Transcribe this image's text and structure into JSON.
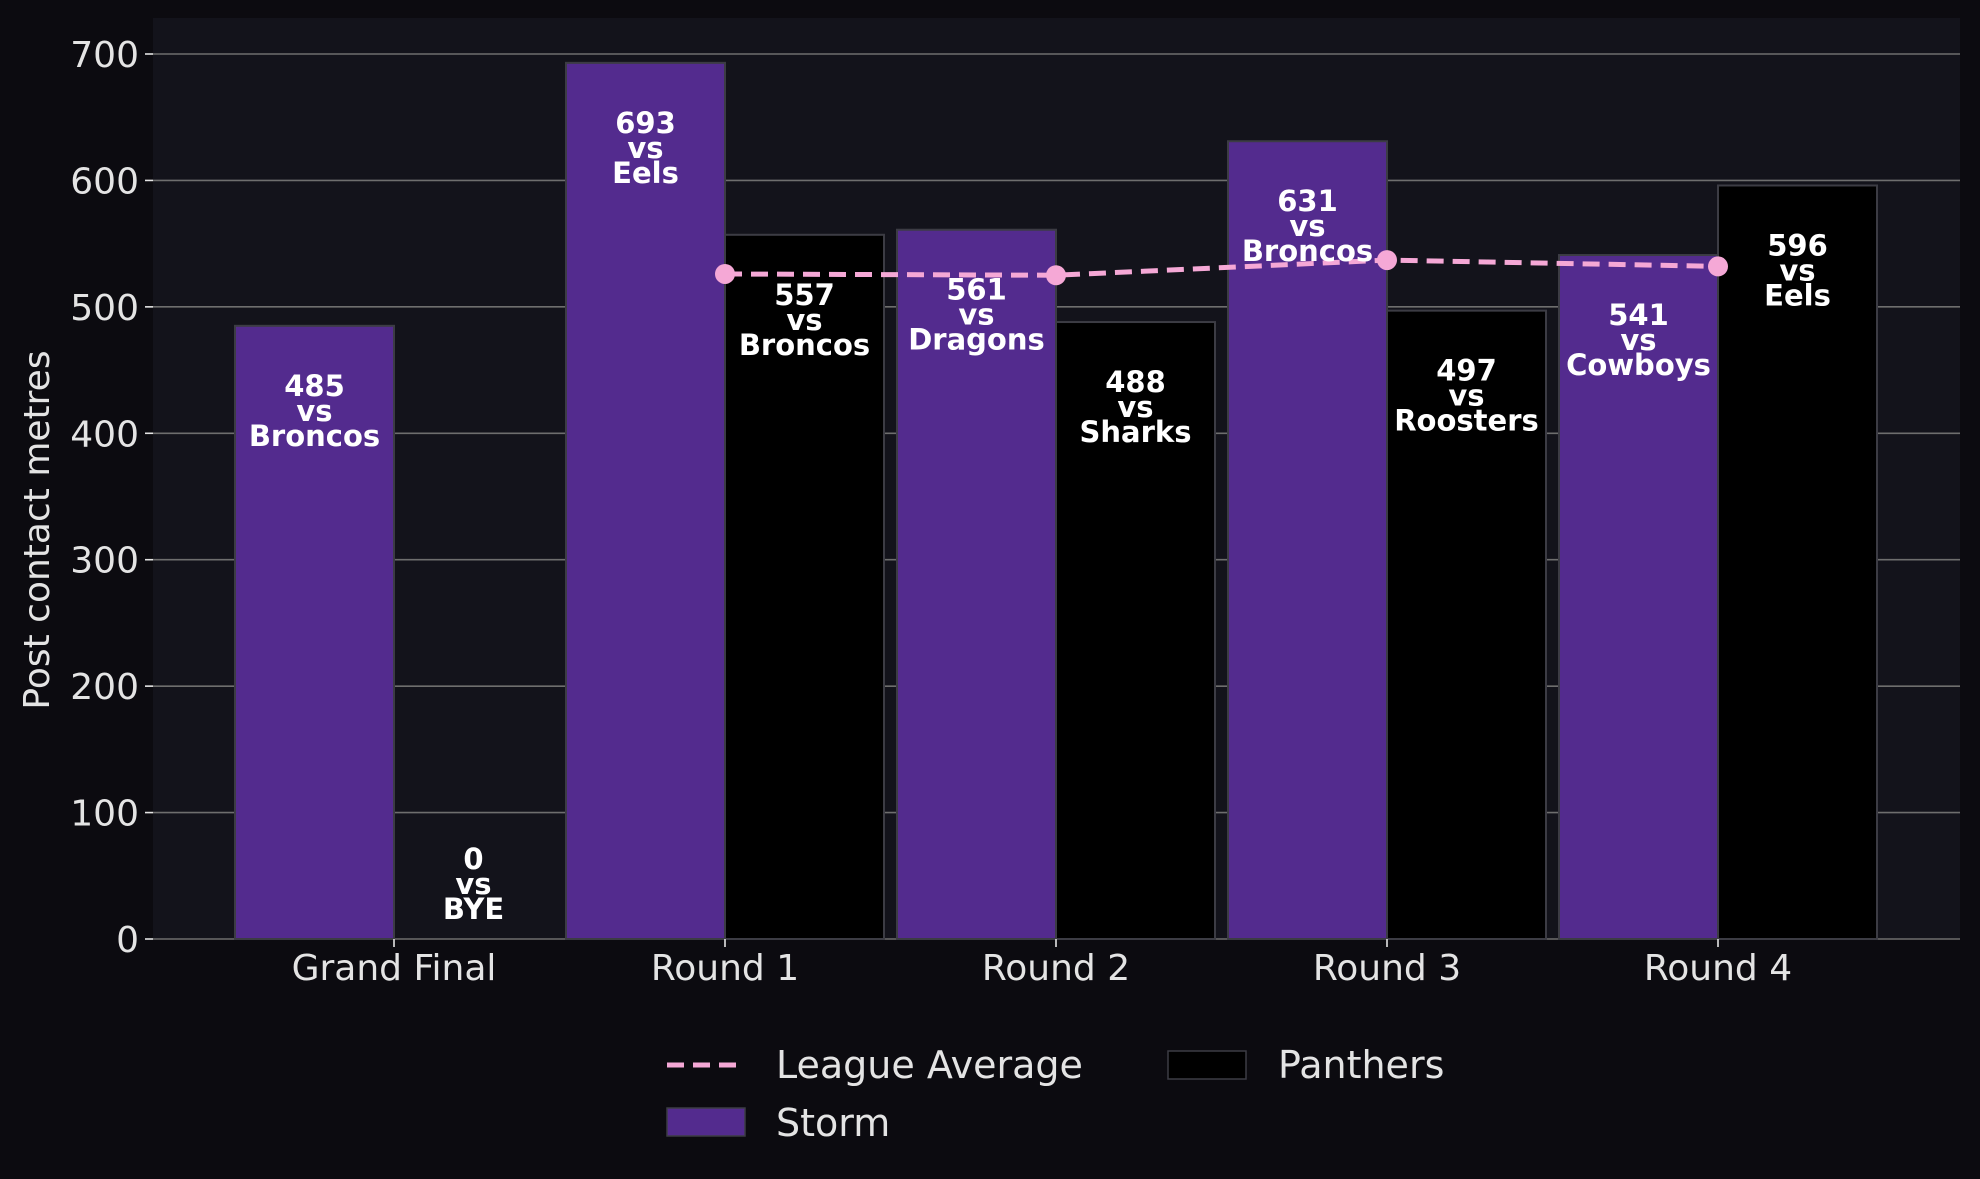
{
  "colors": {
    "figure_bg": "#0c0b10",
    "plot_bg": "#13131b",
    "grid": "#6e6e6e",
    "text": "#e4e4e4",
    "storm": "#532b8e",
    "panthers": "#000000",
    "bar_edge": "#3c3c44",
    "league_avg": "#f5a8d6"
  },
  "chart_data": {
    "type": "bar",
    "title": "",
    "xlabel": "",
    "ylabel": "Post contact metres",
    "ylim": [
      0,
      730
    ],
    "yticks": [
      0,
      100,
      200,
      300,
      400,
      500,
      600,
      700
    ],
    "grid": "horizontal",
    "categories": [
      "Grand Final",
      "Round 1",
      "Round 2",
      "Round 3",
      "Round 4"
    ],
    "series": [
      {
        "name": "Storm",
        "values": [
          485,
          693,
          561,
          631,
          541
        ],
        "opponents": [
          "Broncos",
          "Eels",
          "Dragons",
          "Broncos",
          "Cowboys"
        ]
      },
      {
        "name": "Panthers",
        "values": [
          0,
          557,
          488,
          497,
          596
        ],
        "opponents": [
          "BYE",
          "Broncos",
          "Sharks",
          "Roosters",
          "Eels"
        ]
      }
    ],
    "line": {
      "name": "League Average",
      "categories": [
        "Round 1",
        "Round 2",
        "Round 3",
        "Round 4"
      ],
      "values": [
        526,
        525,
        537,
        532
      ]
    },
    "label_connector": "vs",
    "legend": {
      "placement": "bottom-center",
      "items": [
        "League Average",
        "Panthers",
        "Storm"
      ]
    }
  }
}
